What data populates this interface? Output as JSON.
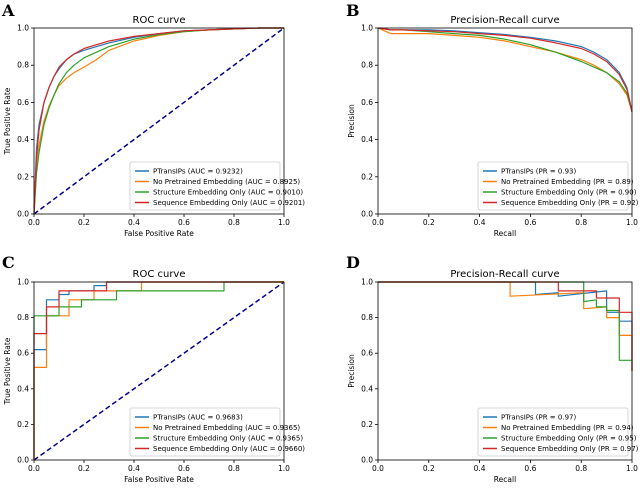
{
  "figure": {
    "colors": {
      "blue": "#1f77b4",
      "orange": "#ff7f0e",
      "green": "#2ca02c",
      "red": "#d62728",
      "diagonal": "#00008b"
    }
  },
  "chart_data": [
    {
      "panel": "A",
      "type": "line",
      "kind": "roc",
      "title": "ROC curve",
      "xlabel": "False Positive Rate",
      "ylabel": "True Positive Rate",
      "xlim": [
        0,
        1
      ],
      "ylim": [
        0,
        1
      ],
      "xticks": [
        "0.0",
        "0.2",
        "0.4",
        "0.6",
        "0.8",
        "1.0"
      ],
      "yticks": [
        "0.0",
        "0.2",
        "0.4",
        "0.6",
        "0.8",
        "1.0"
      ],
      "legend_position": "lower-right",
      "diagonal": true,
      "series": [
        {
          "name": "PTransIPs (AUC = 0.9232)",
          "color": "#1f77b4",
          "x": [
            0,
            0.01,
            0.02,
            0.04,
            0.06,
            0.08,
            0.1,
            0.13,
            0.16,
            0.2,
            0.25,
            0.3,
            0.4,
            0.5,
            0.6,
            0.7,
            0.8,
            0.9,
            1.0
          ],
          "y": [
            0,
            0.35,
            0.48,
            0.6,
            0.68,
            0.74,
            0.78,
            0.83,
            0.86,
            0.88,
            0.9,
            0.92,
            0.95,
            0.97,
            0.985,
            0.99,
            0.995,
            1.0,
            1.0
          ]
        },
        {
          "name": "No Pretrained Embedding (AUC = 0.8925)",
          "color": "#ff7f0e",
          "x": [
            0,
            0.01,
            0.02,
            0.04,
            0.06,
            0.08,
            0.1,
            0.13,
            0.16,
            0.2,
            0.25,
            0.3,
            0.4,
            0.5,
            0.6,
            0.7,
            0.8,
            0.9,
            1.0
          ],
          "y": [
            0,
            0.25,
            0.37,
            0.5,
            0.58,
            0.64,
            0.69,
            0.73,
            0.76,
            0.79,
            0.83,
            0.88,
            0.93,
            0.96,
            0.98,
            0.99,
            0.995,
            1.0,
            1.0
          ]
        },
        {
          "name": "Structure Embedding Only (AUC = 0.9010)",
          "color": "#2ca02c",
          "x": [
            0,
            0.01,
            0.02,
            0.04,
            0.06,
            0.08,
            0.1,
            0.13,
            0.16,
            0.2,
            0.25,
            0.3,
            0.4,
            0.5,
            0.6,
            0.7,
            0.8,
            0.9,
            1.0
          ],
          "y": [
            0,
            0.22,
            0.33,
            0.48,
            0.57,
            0.64,
            0.7,
            0.76,
            0.8,
            0.84,
            0.87,
            0.9,
            0.94,
            0.965,
            0.98,
            0.99,
            0.995,
            1.0,
            1.0
          ]
        },
        {
          "name": "Sequence Embedding Only (AUC = 0.9201)",
          "color": "#d62728",
          "x": [
            0,
            0.01,
            0.02,
            0.04,
            0.06,
            0.08,
            0.1,
            0.13,
            0.16,
            0.2,
            0.25,
            0.3,
            0.4,
            0.5,
            0.6,
            0.7,
            0.8,
            0.9,
            1.0
          ],
          "y": [
            0,
            0.3,
            0.45,
            0.6,
            0.68,
            0.74,
            0.79,
            0.83,
            0.86,
            0.89,
            0.91,
            0.93,
            0.955,
            0.97,
            0.985,
            0.99,
            0.995,
            1.0,
            1.0
          ]
        }
      ]
    },
    {
      "panel": "B",
      "type": "line",
      "kind": "pr",
      "title": "Precision-Recall curve",
      "xlabel": "Recall",
      "ylabel": "Precision",
      "xlim": [
        0,
        1
      ],
      "ylim": [
        0,
        1
      ],
      "xticks": [
        "0.0",
        "0.2",
        "0.4",
        "0.6",
        "0.8",
        "1.0"
      ],
      "yticks": [
        "0.0",
        "0.2",
        "0.4",
        "0.6",
        "0.8",
        "1.0"
      ],
      "legend_position": "lower-right",
      "diagonal": false,
      "series": [
        {
          "name": "PTransIPs (PR = 0.93)",
          "color": "#1f77b4",
          "x": [
            0,
            0.05,
            0.1,
            0.2,
            0.3,
            0.4,
            0.5,
            0.6,
            0.7,
            0.8,
            0.85,
            0.9,
            0.95,
            0.98,
            1.0
          ],
          "y": [
            1.0,
            0.99,
            0.99,
            0.99,
            0.985,
            0.975,
            0.965,
            0.95,
            0.93,
            0.9,
            0.87,
            0.83,
            0.76,
            0.68,
            0.55
          ]
        },
        {
          "name": "No Pretrained Embedding (PR = 0.89)",
          "color": "#ff7f0e",
          "x": [
            0,
            0.05,
            0.1,
            0.2,
            0.3,
            0.4,
            0.5,
            0.6,
            0.7,
            0.8,
            0.85,
            0.9,
            0.95,
            0.98,
            1.0
          ],
          "y": [
            1.0,
            0.97,
            0.97,
            0.97,
            0.96,
            0.95,
            0.93,
            0.9,
            0.87,
            0.83,
            0.8,
            0.76,
            0.7,
            0.64,
            0.55
          ]
        },
        {
          "name": "Structure Embedding Only (PR = 0.90)",
          "color": "#2ca02c",
          "x": [
            0,
            0.05,
            0.1,
            0.2,
            0.3,
            0.4,
            0.5,
            0.6,
            0.7,
            0.8,
            0.85,
            0.9,
            0.95,
            0.98,
            1.0
          ],
          "y": [
            1.0,
            0.99,
            0.99,
            0.98,
            0.97,
            0.96,
            0.94,
            0.91,
            0.87,
            0.82,
            0.79,
            0.76,
            0.71,
            0.65,
            0.55
          ]
        },
        {
          "name": "Sequence Embedding Only (PR = 0.92)",
          "color": "#d62728",
          "x": [
            0,
            0.05,
            0.1,
            0.2,
            0.3,
            0.4,
            0.5,
            0.6,
            0.7,
            0.8,
            0.85,
            0.9,
            0.95,
            0.98,
            1.0
          ],
          "y": [
            1.0,
            0.99,
            0.99,
            0.985,
            0.98,
            0.97,
            0.96,
            0.945,
            0.92,
            0.89,
            0.86,
            0.82,
            0.75,
            0.67,
            0.55
          ]
        }
      ]
    },
    {
      "panel": "C",
      "type": "line",
      "kind": "roc",
      "title": "ROC curve",
      "xlabel": "False Positive Rate",
      "ylabel": "True Positive Rate",
      "xlim": [
        0,
        1
      ],
      "ylim": [
        0,
        1
      ],
      "xticks": [
        "0.0",
        "0.2",
        "0.4",
        "0.6",
        "0.8",
        "1.0"
      ],
      "yticks": [
        "0.0",
        "0.2",
        "0.4",
        "0.6",
        "0.8",
        "1.0"
      ],
      "legend_position": "lower-right",
      "diagonal": true,
      "series": [
        {
          "name": "PTransIPs (AUC = 0.9683)",
          "color": "#1f77b4",
          "x": [
            0,
            0,
            0.05,
            0.05,
            0.1,
            0.1,
            0.14,
            0.14,
            0.24,
            0.24,
            0.29,
            0.29,
            1.0
          ],
          "y": [
            0,
            0.62,
            0.62,
            0.9,
            0.9,
            0.93,
            0.93,
            0.95,
            0.95,
            0.98,
            0.98,
            1.0,
            1.0
          ]
        },
        {
          "name": "No Pretrained Embedding (AUC = 0.9365)",
          "color": "#ff7f0e",
          "x": [
            0,
            0,
            0.05,
            0.05,
            0.14,
            0.14,
            0.24,
            0.24,
            0.43,
            0.43,
            1.0
          ],
          "y": [
            0,
            0.52,
            0.52,
            0.81,
            0.81,
            0.9,
            0.9,
            0.95,
            0.95,
            1.0,
            1.0
          ]
        },
        {
          "name": "Structure Embedding Only (AUC = 0.9365)",
          "color": "#2ca02c",
          "x": [
            0,
            0,
            0.1,
            0.1,
            0.19,
            0.19,
            0.33,
            0.33,
            0.76,
            0.76,
            1.0
          ],
          "y": [
            0,
            0.81,
            0.81,
            0.86,
            0.86,
            0.9,
            0.9,
            0.95,
            0.95,
            1.0,
            1.0
          ]
        },
        {
          "name": "Sequence Embedding Only (AUC = 0.9660)",
          "color": "#d62728",
          "x": [
            0,
            0,
            0.05,
            0.05,
            0.1,
            0.1,
            0.29,
            0.29,
            1.0
          ],
          "y": [
            0,
            0.71,
            0.71,
            0.86,
            0.86,
            0.95,
            0.95,
            1.0,
            1.0
          ]
        }
      ]
    },
    {
      "panel": "D",
      "type": "line",
      "kind": "pr",
      "title": "Precision-Recall curve",
      "xlabel": "Recall",
      "ylabel": "Precision",
      "xlim": [
        0,
        1
      ],
      "ylim": [
        0,
        1
      ],
      "xticks": [
        "0.0",
        "0.2",
        "0.4",
        "0.6",
        "0.8",
        "1.0"
      ],
      "yticks": [
        "0.0",
        "0.2",
        "0.4",
        "0.6",
        "0.8",
        "1.0"
      ],
      "legend_position": "lower-right",
      "diagonal": false,
      "series": [
        {
          "name": "PTransIPs (PR = 0.97)",
          "color": "#1f77b4",
          "x": [
            0,
            0.62,
            0.62,
            0.71,
            0.71,
            0.9,
            0.9,
            0.95,
            0.95,
            1.0,
            1.0
          ],
          "y": [
            1.0,
            1.0,
            0.93,
            0.94,
            0.92,
            0.95,
            0.83,
            0.83,
            0.78,
            0.78,
            0.5
          ]
        },
        {
          "name": "No Pretrained Embedding (PR = 0.94)",
          "color": "#ff7f0e",
          "x": [
            0,
            0.52,
            0.52,
            0.81,
            0.81,
            0.9,
            0.9,
            0.95,
            0.95,
            1.0,
            1.0
          ],
          "y": [
            1.0,
            1.0,
            0.92,
            0.94,
            0.85,
            0.86,
            0.8,
            0.8,
            0.7,
            0.7,
            0.5
          ]
        },
        {
          "name": "Structure Embedding Only (PR = 0.95)",
          "color": "#2ca02c",
          "x": [
            0,
            0.81,
            0.81,
            0.86,
            0.86,
            0.9,
            0.9,
            0.95,
            0.95,
            0.99,
            1.0
          ],
          "y": [
            1.0,
            1.0,
            0.89,
            0.9,
            0.86,
            0.86,
            0.84,
            0.84,
            0.56,
            0.56,
            0.56
          ]
        },
        {
          "name": "Sequence Embedding Only (PR = 0.97)",
          "color": "#d62728",
          "x": [
            0,
            0.71,
            0.71,
            0.86,
            0.86,
            0.95,
            0.95,
            1.0,
            1.0
          ],
          "y": [
            1.0,
            1.0,
            0.95,
            0.95,
            0.91,
            0.91,
            0.83,
            0.83,
            0.5
          ]
        }
      ]
    }
  ]
}
